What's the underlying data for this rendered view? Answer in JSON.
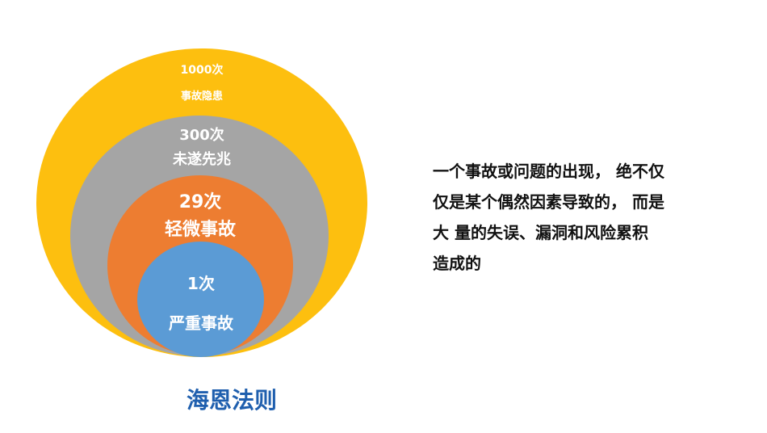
{
  "diagram": {
    "title": "海恩法则",
    "levels": [
      {
        "count": "1000次",
        "label": "事故隐患",
        "color": "#fdbf0f"
      },
      {
        "count": "300次",
        "label": "未遂先兆",
        "color": "#a5a5a5"
      },
      {
        "count": "29次",
        "label": "轻微事故",
        "color": "#ed7d31"
      },
      {
        "count": "1次",
        "label": "严重事故",
        "color": "#5b9bd5"
      }
    ]
  },
  "description": {
    "lines": [
      "一个事故或问题的出现， 绝不仅",
      "仅是某个偶然因素导致的， 而是",
      "大 量的失误、漏洞和风险累积",
      "造成的"
    ]
  }
}
